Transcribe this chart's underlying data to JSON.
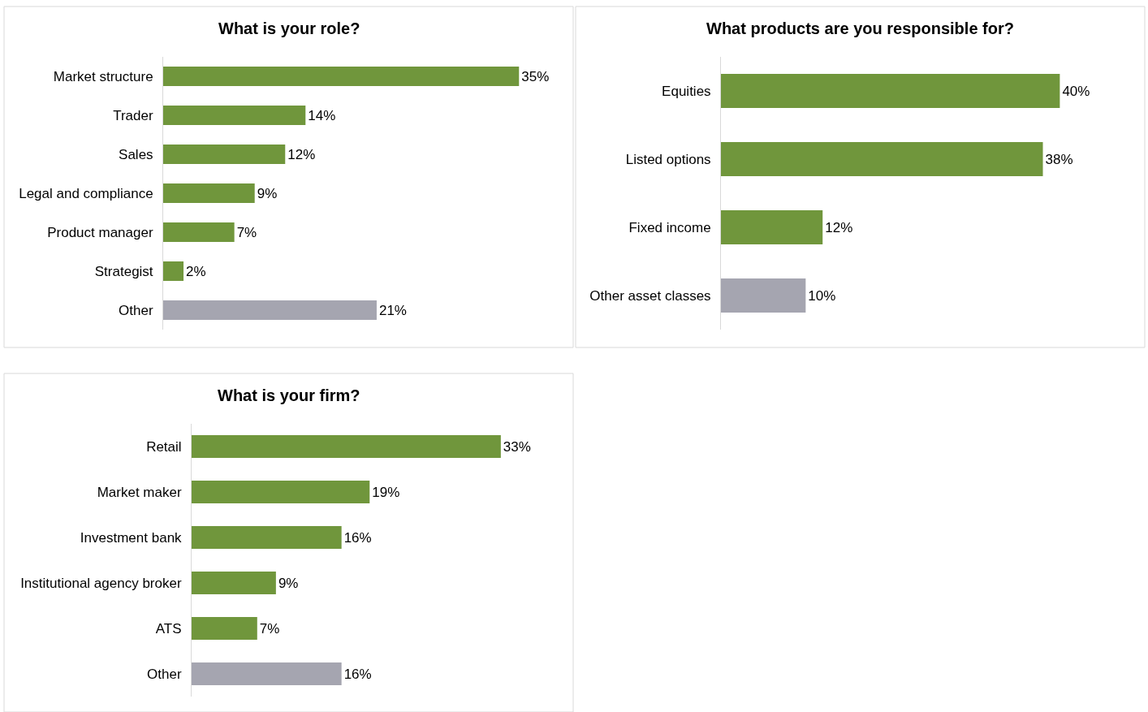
{
  "chart_data": [
    {
      "type": "bar",
      "orientation": "horizontal",
      "title": "What is your role?",
      "categories": [
        "Market structure",
        "Trader",
        "Sales",
        "Legal and compliance",
        "Product manager",
        "Strategist",
        "Other"
      ],
      "values": [
        35,
        14,
        12,
        9,
        7,
        2,
        21
      ],
      "colors": [
        "#70963c",
        "#70963c",
        "#70963c",
        "#70963c",
        "#70963c",
        "#70963c",
        "#a5a5b0"
      ],
      "value_labels": [
        "35%",
        "14%",
        "12%",
        "9%",
        "7%",
        "2%",
        "21%"
      ]
    },
    {
      "type": "bar",
      "orientation": "horizontal",
      "title": "What products are you responsible for?",
      "categories": [
        "Equities",
        "Listed options",
        "Fixed income",
        "Other asset classes"
      ],
      "values": [
        40,
        38,
        12,
        10
      ],
      "colors": [
        "#70963c",
        "#70963c",
        "#70963c",
        "#a5a5b0"
      ],
      "value_labels": [
        "40%",
        "38%",
        "12%",
        "10%"
      ]
    },
    {
      "type": "bar",
      "orientation": "horizontal",
      "title": "What is your firm?",
      "categories": [
        "Retail",
        "Market maker",
        "Investment bank",
        "Institutional agency broker",
        "ATS",
        "Other"
      ],
      "values": [
        33,
        19,
        16,
        9,
        7,
        16
      ],
      "colors": [
        "#70963c",
        "#70963c",
        "#70963c",
        "#70963c",
        "#70963c",
        "#a5a5b0"
      ],
      "value_labels": [
        "33%",
        "19%",
        "16%",
        "9%",
        "7%",
        "16%"
      ]
    }
  ]
}
